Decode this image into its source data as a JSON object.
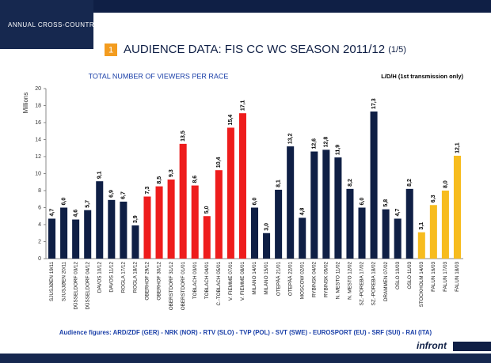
{
  "header": {
    "event": "ANNUAL CROSS-COUNTRY TV MEETING 2012",
    "slide_number": "1",
    "slide_title": "AUDIENCE DATA: FIS CC WC SEASON 2011/12",
    "slide_part": "(1/5)"
  },
  "chart_data": {
    "type": "bar",
    "title": "TOTAL NUMBER OF VIEWERS PER RACE",
    "subtitle": "L/D/H (1st transmission only)",
    "y_label": "Millions",
    "categories": [
      "SJUSJØEN 19/11",
      "SJUSJØEN 20/11",
      "DÜSSELDORF 03/12",
      "DÜSSELDORF 04/12",
      "DAVOS 10/12",
      "DAVOS 11/12",
      "ROGLA 17/12",
      "ROGLA 18/12",
      "OBERHOF 29/12",
      "OBERHOF 30/12",
      "OBERSTDORF 31/12",
      "OBERSTDORF 01/01",
      "TOBLACH 03/01",
      "TOBLACH 04/01",
      "C.-TOBLACH 05/01",
      "V. FIEMME 07/01",
      "V. FIEMME 08/01",
      "MILANO 14/01",
      "MILANO 15/01",
      "OTEPÄÄ 21/01",
      "OTEPÄÄ 22/01",
      "MOSCOW 02/01",
      "RYBINSK 04/02",
      "RYBINSK 05/02",
      "N. MESTO 11/02",
      "N. MESTO 12/02",
      "SZ.-POREBA 17/02",
      "SZ.-POREBA 18/02",
      "DRAMMEN 07/02",
      "OSLO 10/03",
      "OSLO 11/03",
      "STOCKHOLM 14/03",
      "FALUN 16/03",
      "FALUN 17/03",
      "FALUN 18/03"
    ],
    "values": [
      4.7,
      6.0,
      4.6,
      5.7,
      9.1,
      6.9,
      6.7,
      3.9,
      7.3,
      8.5,
      9.3,
      13.5,
      8.6,
      5.0,
      10.4,
      15.4,
      17.1,
      6.0,
      3.0,
      8.1,
      13.2,
      4.8,
      12.6,
      12.8,
      11.9,
      8.2,
      6.0,
      17.3,
      5.8,
      4.7,
      8.2,
      3.1,
      6.3,
      8.0,
      12.1
    ],
    "value_labels": [
      "4,7",
      "6,0",
      "4,6",
      "5,7",
      "9,1",
      "6,9",
      "6,7",
      "3,9",
      "7,3",
      "8,5",
      "9,3",
      "13,5",
      "8,6",
      "5,0",
      "10,4",
      "15,4",
      "17,1",
      "6,0",
      "3,0",
      "8,1",
      "13,2",
      "4,8",
      "12,6",
      "12,8",
      "11,9",
      "8,2",
      "6,0",
      "17,3",
      "5,8",
      "4,7",
      "8,2",
      "3,1",
      "6,3",
      "8,0",
      "12,1"
    ],
    "colors": [
      "#0f1f45",
      "#0f1f45",
      "#0f1f45",
      "#0f1f45",
      "#0f1f45",
      "#0f1f45",
      "#0f1f45",
      "#0f1f45",
      "#ee1c1c",
      "#ee1c1c",
      "#ee1c1c",
      "#ee1c1c",
      "#ee1c1c",
      "#ee1c1c",
      "#ee1c1c",
      "#ee1c1c",
      "#ee1c1c",
      "#0f1f45",
      "#0f1f45",
      "#0f1f45",
      "#0f1f45",
      "#0f1f45",
      "#0f1f45",
      "#0f1f45",
      "#0f1f45",
      "#0f1f45",
      "#0f1f45",
      "#0f1f45",
      "#0f1f45",
      "#0f1f45",
      "#0f1f45",
      "#f7bc1e",
      "#f7bc1e",
      "#f7bc1e",
      "#f7bc1e"
    ],
    "ylim": [
      0,
      20
    ],
    "yticks": [
      0,
      2,
      4,
      6,
      8,
      10,
      12,
      14,
      16,
      18,
      20
    ],
    "grid": false
  },
  "footer": {
    "sources": "Audience figures: ARD/ZDF (GER) - NRK (NOR) - RTV (SLO) - TVP (POL) - SVT (SWE) - EUROSPORT (EU) - SRF (SUI) - RAI (ITA)",
    "logo": "infront"
  }
}
